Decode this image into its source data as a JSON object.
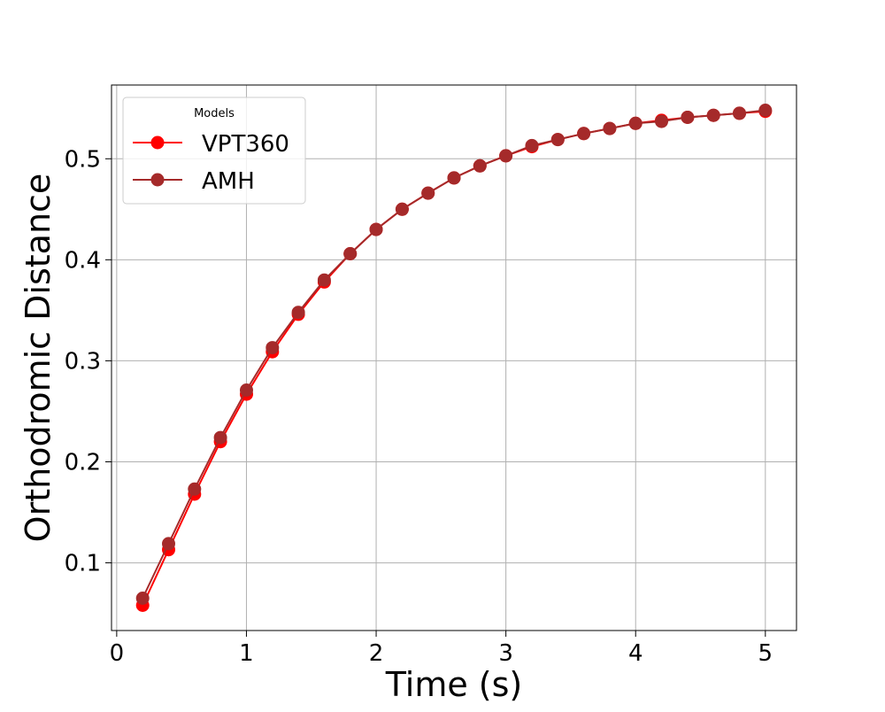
{
  "chart_data": {
    "type": "line",
    "title": "",
    "xlabel": "Time (s)",
    "ylabel": "Orthodromic Distance",
    "xlim": [
      -0.04,
      5.24
    ],
    "ylim": [
      0.033,
      0.573
    ],
    "xticks": [
      0,
      1,
      2,
      3,
      4,
      5
    ],
    "xtick_labels": [
      "0",
      "1",
      "2",
      "3",
      "4",
      "5"
    ],
    "yticks": [
      0.1,
      0.2,
      0.3,
      0.4,
      0.5
    ],
    "ytick_labels": [
      "0.1",
      "0.2",
      "0.3",
      "0.4",
      "0.5"
    ],
    "grid": true,
    "legend": {
      "title": "Models",
      "placement": "top-left"
    },
    "x": [
      0.2,
      0.4,
      0.6,
      0.8,
      1.0,
      1.2,
      1.4,
      1.6,
      1.8,
      2.0,
      2.2,
      2.4,
      2.6,
      2.8,
      3.0,
      3.2,
      3.4,
      3.6,
      3.8,
      4.0,
      4.2,
      4.4,
      4.6,
      4.8,
      5.0
    ],
    "series": [
      {
        "name": "VPT360",
        "color": "#ff0000",
        "marker": "circle",
        "values": [
          0.058,
          0.113,
          0.168,
          0.22,
          0.267,
          0.309,
          0.346,
          0.378,
          0.406,
          0.43,
          0.45,
          0.466,
          0.481,
          0.493,
          0.503,
          0.512,
          0.519,
          0.525,
          0.53,
          0.535,
          0.538,
          0.541,
          0.543,
          0.545,
          0.547
        ]
      },
      {
        "name": "AMH",
        "color": "#a52a2a",
        "marker": "circle",
        "values": [
          0.065,
          0.119,
          0.173,
          0.224,
          0.271,
          0.313,
          0.348,
          0.38,
          0.406,
          0.43,
          0.45,
          0.466,
          0.481,
          0.493,
          0.503,
          0.513,
          0.519,
          0.525,
          0.53,
          0.535,
          0.537,
          0.541,
          0.543,
          0.545,
          0.548
        ]
      }
    ]
  }
}
